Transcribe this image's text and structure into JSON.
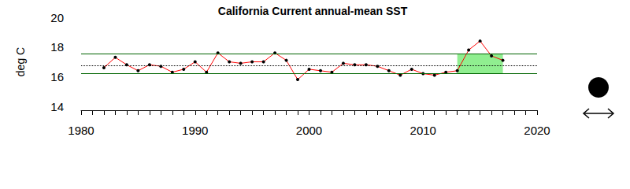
{
  "chart_data": {
    "type": "line",
    "title": "California Current annual-mean SST",
    "y_label": "deg C",
    "x": [
      1982,
      1983,
      1984,
      1985,
      1986,
      1987,
      1988,
      1989,
      1990,
      1991,
      1992,
      1993,
      1994,
      1995,
      1996,
      1997,
      1998,
      1999,
      2000,
      2001,
      2002,
      2003,
      2004,
      2005,
      2006,
      2007,
      2008,
      2009,
      2010,
      2011,
      2012,
      2013,
      2014,
      2015,
      2016,
      2017
    ],
    "values": [
      16.6,
      17.3,
      16.8,
      16.4,
      16.8,
      16.7,
      16.3,
      16.5,
      17.0,
      16.3,
      17.6,
      17.0,
      16.9,
      17.0,
      17.0,
      17.6,
      17.1,
      15.8,
      16.5,
      16.4,
      16.3,
      16.9,
      16.8,
      16.8,
      16.7,
      16.4,
      16.1,
      16.5,
      16.2,
      16.1,
      16.3,
      16.4,
      17.8,
      18.4,
      17.4,
      17.1
    ],
    "color": "#ff0000",
    "marker": "circle",
    "line_style": "solid",
    "reference_lines": [
      {
        "value": 17.55,
        "line_style": "solid",
        "color": "#006400"
      },
      {
        "value": 16.75,
        "line_style": "dotted",
        "color": "#000000"
      },
      {
        "value": 16.2,
        "line_style": "solid",
        "color": "#006400"
      }
    ],
    "shaded": {
      "x": [
        2013,
        2017
      ],
      "y": [
        16.2,
        17.55
      ],
      "color": "#90ee90"
    },
    "xlim": [
      1980,
      2020
    ],
    "xticks": [
      1980,
      1990,
      2000,
      2010,
      2020
    ],
    "ylim": [
      14,
      20
    ],
    "yticks": [
      14,
      16,
      18,
      20
    ],
    "grid": false
  }
}
